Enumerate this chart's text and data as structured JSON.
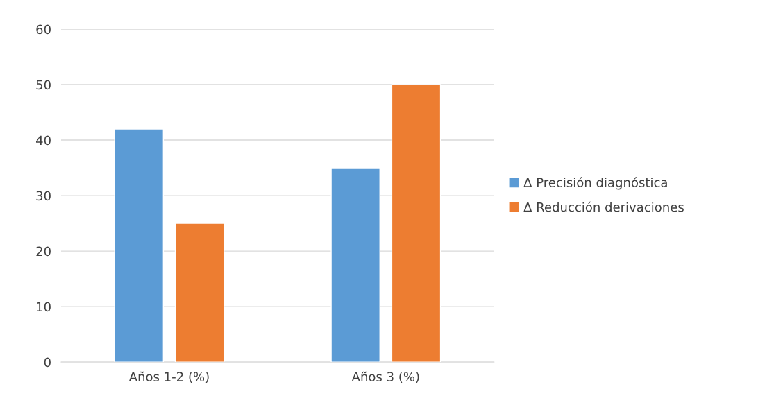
{
  "chart_data": {
    "type": "bar",
    "categories": [
      "Años 1-2 (%)",
      "Años 3 (%)"
    ],
    "series": [
      {
        "name": "Δ Precisión diagnóstica",
        "color": "#5b9bd5",
        "values": [
          42,
          35
        ]
      },
      {
        "name": "Δ Reducción derivaciones",
        "color": "#ed7d31",
        "values": [
          25,
          50
        ]
      }
    ],
    "ylim": [
      0,
      60
    ],
    "yticks": [
      0,
      10,
      20,
      30,
      40,
      50,
      60
    ],
    "grid": "y",
    "legend": "right"
  }
}
